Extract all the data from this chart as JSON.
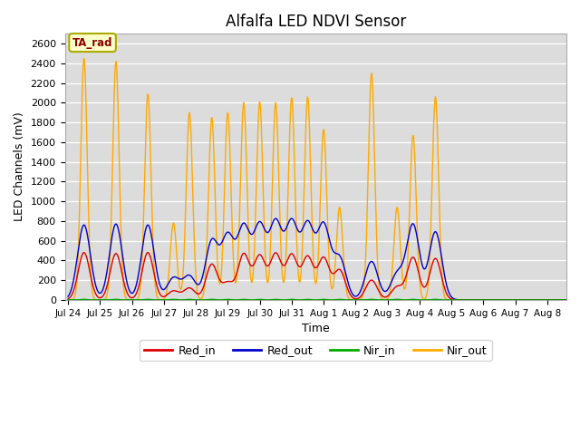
{
  "title": "Alfalfa LED NDVI Sensor",
  "xlabel": "Time",
  "ylabel": "LED Channels (mV)",
  "ylim": [
    0,
    2700
  ],
  "background_color": "#dcdcdc",
  "ta_rad_label": "TA_rad",
  "legend_labels": [
    "Red_in",
    "Red_out",
    "Nir_in",
    "Nir_out"
  ],
  "legend_colors": [
    "#dd0000",
    "#0000cc",
    "#00aa00",
    "#ffaa00"
  ],
  "x_tick_labels": [
    "Jul 24",
    "Jul 25",
    "Jul 26",
    "Jul 27",
    "Jul 28",
    "Jul 29",
    "Jul 30",
    "Jul 31",
    "Aug 1",
    "Aug 2",
    "Aug 3",
    "Aug 4",
    "Aug 5",
    "Aug 6",
    "Aug 7",
    "Aug 8"
  ],
  "num_days": 16,
  "peak_positions": [
    0.5,
    1.5,
    2.5,
    3.3,
    3.75,
    4.35,
    4.8,
    5.5,
    6.0,
    6.5,
    7.0,
    7.5,
    8.0,
    8.45,
    9.0,
    9.5,
    10.0,
    10.5,
    11.0,
    11.5,
    12.0,
    13.0,
    13.6,
    14.0,
    14.5,
    15.0,
    15.5
  ],
  "red_in_peaks": [
    480,
    470,
    480,
    90,
    120,
    360,
    170,
    460,
    440,
    460,
    450,
    430,
    420,
    300,
    200,
    430,
    430,
    0,
    0,
    0,
    0,
    0,
    0,
    0,
    0,
    0,
    0
  ],
  "red_out_peaks": [
    760,
    770,
    760,
    220,
    240,
    590,
    630,
    720,
    730,
    760,
    760,
    740,
    740,
    420,
    390,
    760,
    690,
    0,
    0,
    0,
    0,
    0,
    0,
    0,
    0,
    0,
    0
  ],
  "nir_in_peaks": [
    5,
    5,
    5,
    5,
    5,
    5,
    5,
    5,
    5,
    5,
    5,
    5,
    5,
    5,
    5,
    5,
    5,
    0,
    0,
    0,
    0,
    0,
    0,
    0,
    0,
    0,
    0
  ],
  "nir_out_peaks": [
    2450,
    2420,
    2090,
    780,
    1900,
    1850,
    1900,
    2000,
    2010,
    2000,
    2050,
    2060,
    1730,
    940,
    2300,
    1670,
    2060,
    0,
    0,
    0,
    0,
    0,
    0,
    0,
    0,
    0,
    0
  ],
  "red_in_sigma": 0.18,
  "red_out_sigma": 0.2,
  "nir_in_sigma": 0.08,
  "nir_out_sigma": 0.1,
  "grid_color": "#ffffff",
  "spine_color": "#aaaaaa"
}
